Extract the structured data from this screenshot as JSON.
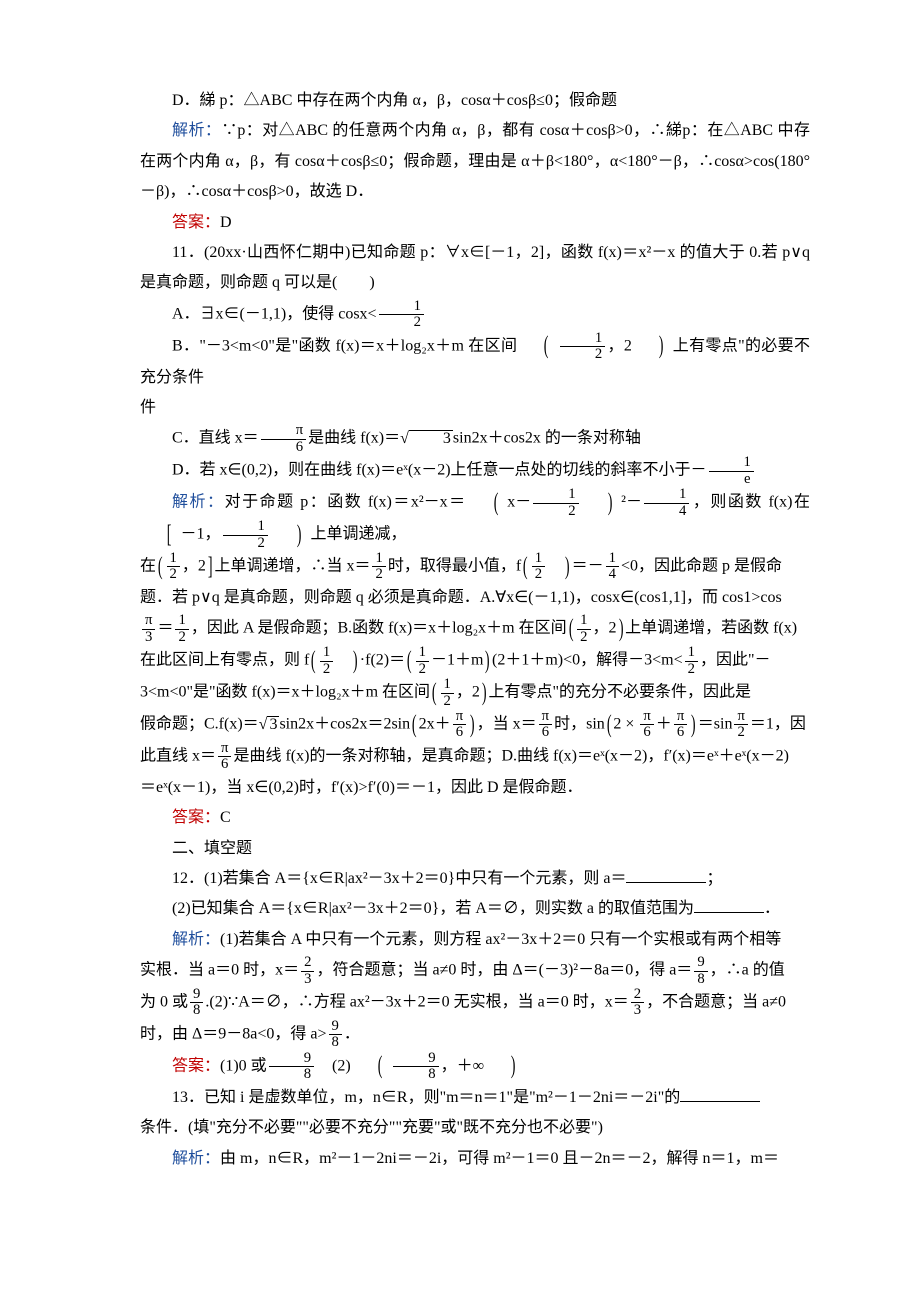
{
  "colors": {
    "text": "#000000",
    "blue": "#1f4e9c",
    "red": "#c00000",
    "background": "#ffffff"
  },
  "fonts": {
    "body_family": "SimSun",
    "body_size_pt": 12,
    "line_height": 1.9
  },
  "q10": {
    "optD": "D．綈 p：△ABC 中存在两个内角 α，β，cosα＋cosβ≤0；假命题",
    "jiexi_label": "解析：",
    "jiexi": "∵p：对△ABC 的任意两个内角 α，β，都有 cosα＋cosβ>0，∴綈p：在△ABC 中存在两个内角 α，β，有 cosα＋cosβ≤0；假命题，理由是 α＋β<180°，α<180°－β，∴cosα>cos(180°－β)，∴cosα＋cosβ>0，故选 D．",
    "daan_label": "答案：",
    "daan": "D"
  },
  "q11": {
    "stem1": "11．(20xx·山西怀仁期中)已知命题 p：∀x∈[－1，2]，函数 f(x)＝x²－x 的值大于 0.若 p∨q 是真命题，则命题 q 可以是(　　)",
    "optA_pre": "A．∃x∈(－1,1)，使得 cosx<",
    "optB_pre": "B．\"－3<m<0\"是\"函数 f(x)＝x＋log₂x＋m 在区间",
    "optB_post": "上有零点\"的必要不充分条件",
    "optC_pre": "C．直线 x＝",
    "optC_post": "是曲线 f(x)＝",
    "optC_end": "sin2x＋cos2x 的一条对称轴",
    "optD_pre": "D．若 x∈(0,2)，则在曲线 f(x)＝eˣ(x－2)上任意一点处的切线的斜率不小于－",
    "jiexi_label": "解析：",
    "jiexi_1_pre": "对于命题 p：函数 f(x)＝x²－x＝",
    "jiexi_1_mid": "，则函数 f(x)在",
    "jiexi_1_post": "上单调递减，",
    "jiexi_2_pre": "在",
    "jiexi_2_a": "上单调递增，∴当 x＝",
    "jiexi_2_b": "时，取得最小值，f",
    "jiexi_2_c": "＝－",
    "jiexi_2_d": "<0，因此命题 p 是假命",
    "jiexi_3": "题．若 p∨q 是真命题，则命题 q 必须是真命题．A.∀x∈(－1,1)，cosx∈(cos1,1]，而 cos1>cos",
    "jiexi_4_a": "＝",
    "jiexi_4_b": "，因此 A 是假命题；B.函数 f(x)＝x＋log₂x＋m 在区间",
    "jiexi_4_c": "上单调递增，若函数 f(x)",
    "jiexi_5_pre": "在此区间上有零点，则 f",
    "jiexi_5_a": "·f(2)＝",
    "jiexi_5_b": "(2＋1＋m)<0，解得－3<m<",
    "jiexi_5_c": "，因此\"－",
    "jiexi_6_pre": "3<m<0\"是\"函数 f(x)＝x＋log₂x＋m 在区间",
    "jiexi_6_post": "上有零点\"的充分不必要条件，因此是",
    "jiexi_7_pre": "假命题；C.f(x)＝",
    "jiexi_7_a": "sin2x＋cos2x＝2sin",
    "jiexi_7_b": "，当 x＝",
    "jiexi_7_c": "时，sin",
    "jiexi_7_d": "＝sin",
    "jiexi_7_e": "＝1，因",
    "jiexi_8_pre": "此直线 x＝",
    "jiexi_8_post": "是曲线 f(x)的一条对称轴，是真命题；D.曲线 f(x)＝eˣ(x－2)，f′(x)＝eˣ＋eˣ(x－2)",
    "jiexi_9": "＝eˣ(x－1)，当 x∈(0,2)时，f′(x)>f′(0)＝－1，因此 D 是假命题．",
    "daan_label": "答案：",
    "daan": "C"
  },
  "section2": "二、填空题",
  "q12": {
    "p1": "12．(1)若集合 A＝{x∈R|ax²－3x＋2＝0}中只有一个元素，则 a＝",
    "p1_end": "；",
    "p2": "(2)已知集合 A＝{x∈R|ax²－3x＋2＝0}，若 A＝∅，则实数 a 的取值范围为",
    "p2_end": "．",
    "jiexi_label": "解析：",
    "jiexi1": "(1)若集合 A 中只有一个元素，则方程 ax²－3x＋2＝0 只有一个实根或有两个相等",
    "jiexi2_pre": "实根．当 a＝0 时，x＝",
    "jiexi2_a": "，符合题意；当 a≠0 时，由 Δ＝(－3)²－8a＝0，得 a＝",
    "jiexi2_b": "，∴a 的值",
    "jiexi3_pre": "为 0 或",
    "jiexi3_a": ".(2)∵A＝∅，∴方程 ax²－3x＋2＝0 无实根，当 a＝0 时，x＝",
    "jiexi3_b": "，不合题意；当 a≠0",
    "jiexi4_pre": "时，由 Δ＝9－8a<0，得 a>",
    "jiexi4_end": "．",
    "daan_label": "答案：",
    "daan_pre": "(1)0 或",
    "daan_mid": "　(2)"
  },
  "q13": {
    "p1": "13．已知 i 是虚数单位，m，n∈R，则\"m＝n＝1\"是\"m²－1－2ni＝－2i\"的",
    "p1b": "条件．(填\"充分不必要\"\"必要不充分\"\"充要\"或\"既不充分也不必要\")",
    "jiexi_label": "解析：",
    "jiexi": "由 m，n∈R，m²－1－2ni＝－2i，可得 m²－1＝0 且－2n＝－2，解得 n＝1，m＝"
  }
}
